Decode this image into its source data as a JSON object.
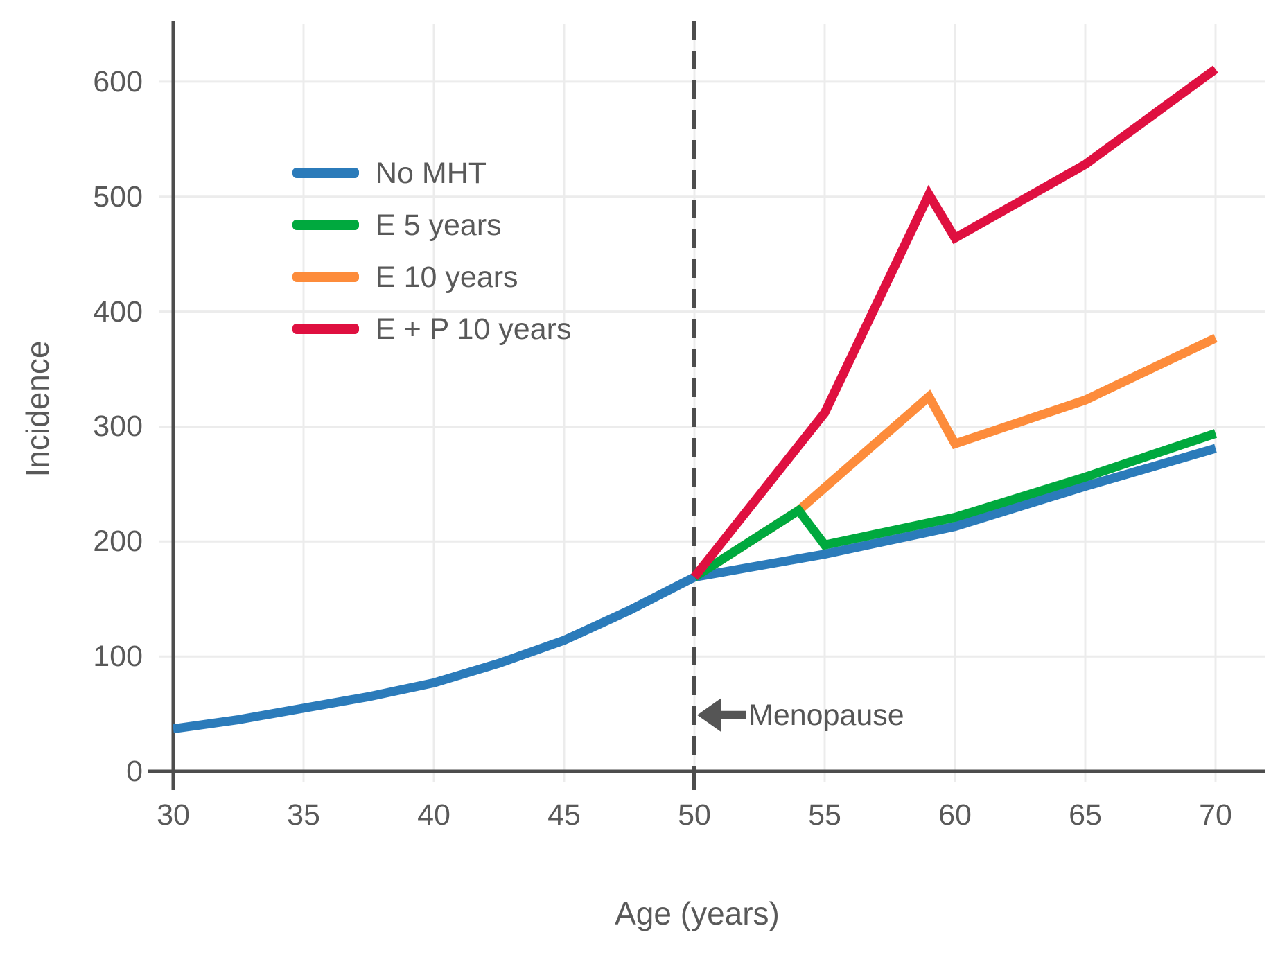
{
  "chart_data": {
    "type": "line",
    "title": "",
    "xlabel": "Age (years)",
    "ylabel": "Incidence",
    "xlim": [
      30,
      70
    ],
    "ylim": [
      0,
      650
    ],
    "x_ticks": [
      30,
      35,
      40,
      45,
      50,
      55,
      60,
      65,
      70
    ],
    "y_ticks": [
      0,
      100,
      200,
      300,
      400,
      500,
      600
    ],
    "grid": "on",
    "legend_position": "upper-left-inside",
    "colors": {
      "grid": "#ececec",
      "axis": "#4d4d4d",
      "text": "#595959",
      "annotation": "#555555"
    },
    "series": [
      {
        "name": "No MHT",
        "color": "#2b7bba",
        "points": [
          [
            30,
            37
          ],
          [
            32.5,
            45
          ],
          [
            35,
            55
          ],
          [
            37.5,
            65
          ],
          [
            40,
            77
          ],
          [
            42.5,
            94
          ],
          [
            45,
            114
          ],
          [
            47.5,
            140
          ],
          [
            50,
            169
          ],
          [
            55,
            189
          ],
          [
            60,
            213
          ],
          [
            65,
            248
          ],
          [
            70,
            281
          ]
        ]
      },
      {
        "name": "E 5 years",
        "color": "#00a93e",
        "points": [
          [
            50,
            169
          ],
          [
            54,
            227
          ],
          [
            55,
            197
          ],
          [
            60,
            221
          ],
          [
            65,
            256
          ],
          [
            70,
            294
          ]
        ]
      },
      {
        "name": "E 10 years",
        "color": "#fd8c3b",
        "points": [
          [
            50,
            169
          ],
          [
            54,
            227
          ],
          [
            59,
            326
          ],
          [
            60,
            285
          ],
          [
            65,
            323
          ],
          [
            70,
            377
          ]
        ]
      },
      {
        "name": "E + P 10 years",
        "color": "#df1040",
        "points": [
          [
            50,
            169
          ],
          [
            55,
            312
          ],
          [
            59,
            502
          ],
          [
            60,
            464
          ],
          [
            65,
            528
          ],
          [
            70,
            611
          ]
        ]
      }
    ],
    "reference_line": {
      "x": 50,
      "style": "dashed",
      "color": "#4d4d4d"
    },
    "annotation": {
      "text": "Menopause",
      "arrow": "left",
      "x": 50,
      "y": 49
    }
  }
}
